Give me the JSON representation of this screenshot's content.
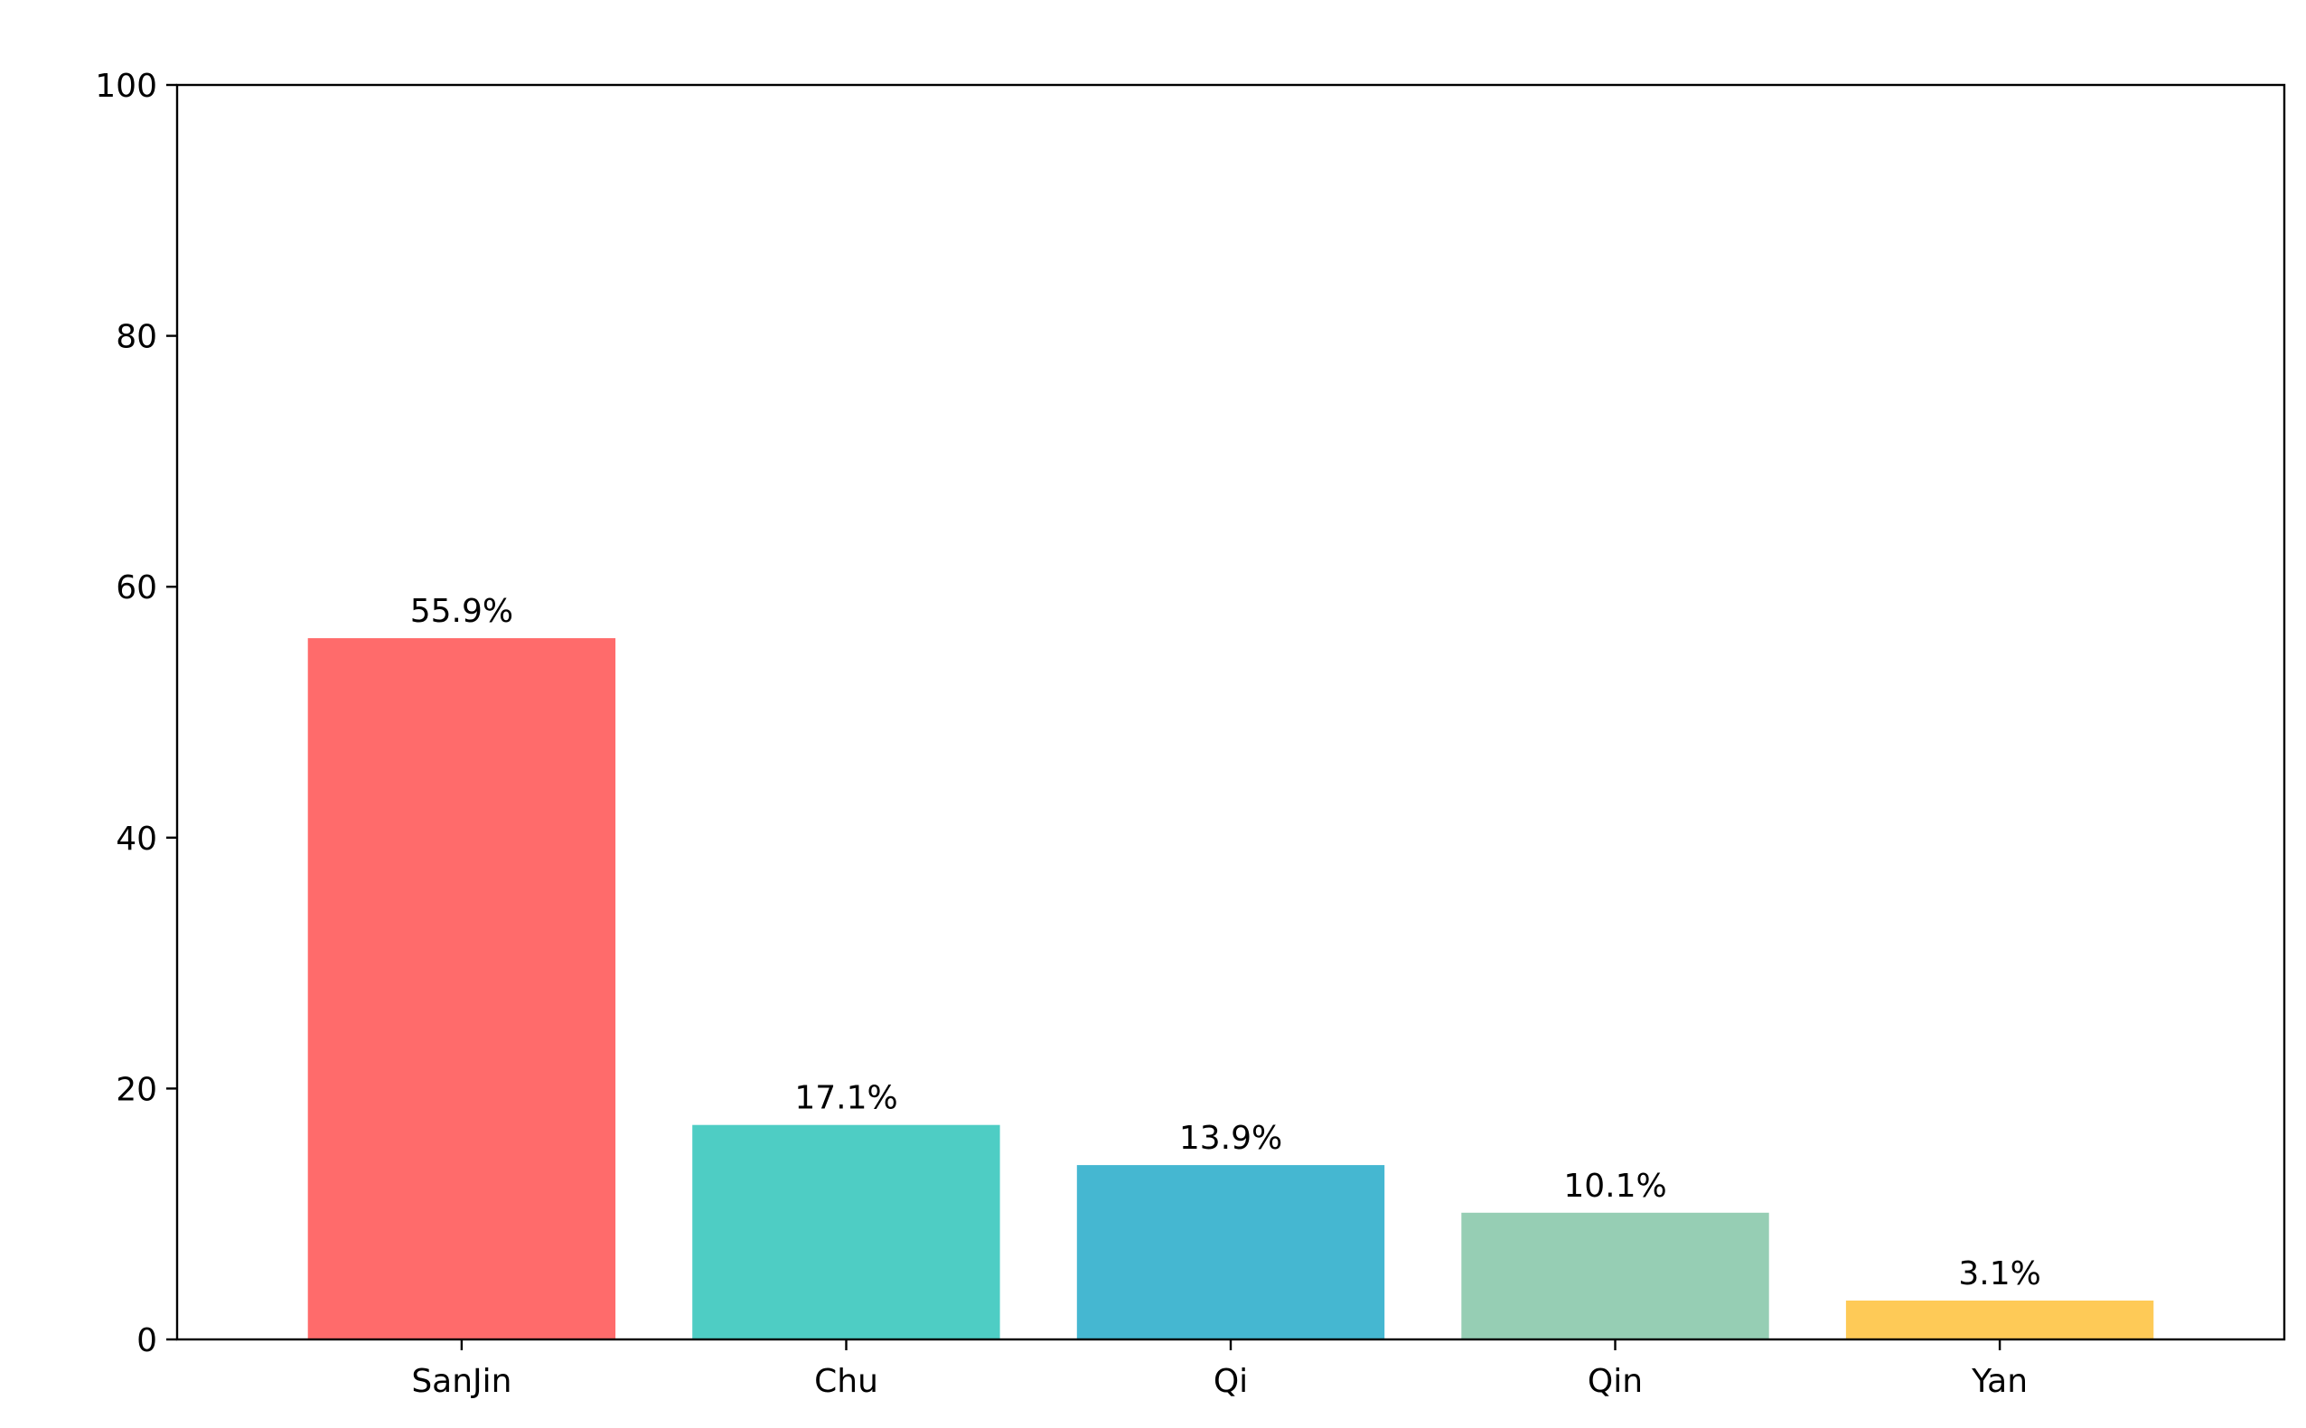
{
  "chart_data": {
    "type": "bar",
    "title": "",
    "xlabel": "",
    "ylabel": "",
    "categories": [
      "SanJin",
      "Chu",
      "Qi",
      "Qin",
      "Yan"
    ],
    "values": [
      55.9,
      17.1,
      13.9,
      10.1,
      3.1
    ],
    "data_labels": [
      "55.9%",
      "17.1%",
      "13.9%",
      "10.1%",
      "3.1%"
    ],
    "colors": [
      "#FF6B6B",
      "#4ECDC4",
      "#45B7D1",
      "#96CEB4",
      "#FECA57"
    ],
    "ylim": [
      0,
      100
    ],
    "yticks": [
      0,
      20,
      40,
      60,
      80,
      100
    ],
    "grid": false,
    "legend": "none"
  }
}
